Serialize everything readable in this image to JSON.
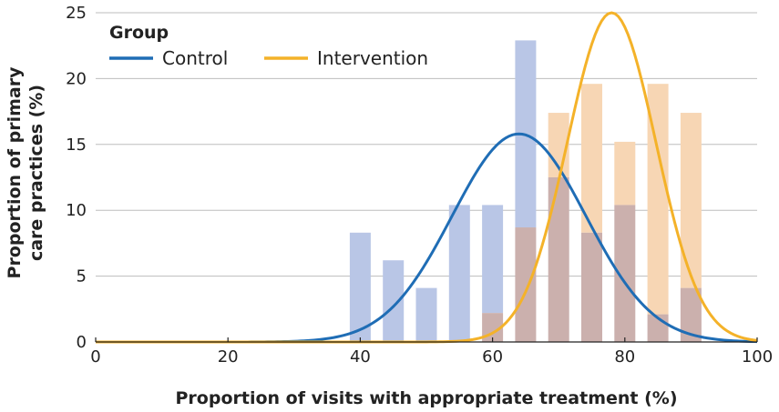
{
  "chart_data": {
    "type": "bar",
    "title": "",
    "xlabel": "Proportion of visits with appropriate treatment (%)",
    "ylabel_lines": [
      "Proportion of primary",
      "care practices (%)"
    ],
    "xlim": [
      0,
      100
    ],
    "ylim": [
      0,
      25
    ],
    "x_ticks": [
      0,
      20,
      40,
      60,
      80,
      100
    ],
    "y_ticks": [
      0,
      5,
      10,
      15,
      20,
      25
    ],
    "grid": "horizontal",
    "legend": {
      "title": "Group",
      "position": "top-left"
    },
    "bar_centers": [
      40,
      45,
      50,
      55,
      60,
      65,
      70,
      75,
      80,
      85,
      90
    ],
    "series": [
      {
        "name": "Control",
        "bar_color": "#b9c6e6",
        "line_color": "#1f6db5",
        "values": [
          8.3,
          6.2,
          4.1,
          10.4,
          10.4,
          22.9,
          12.5,
          8.3,
          10.4,
          2.1,
          4.1
        ],
        "density_mean": 64,
        "density_sd": 10.1,
        "density_peak": 15.8
      },
      {
        "name": "Intervention",
        "bar_color": "#f7d6b4",
        "line_color": "#f4b229",
        "values": [
          0,
          0,
          0,
          0,
          2.2,
          8.7,
          17.4,
          19.6,
          15.2,
          19.6,
          17.4
        ],
        "density_mean": 78,
        "density_sd": 6.7,
        "density_peak": 25
      }
    ],
    "overlap_color": "#cbb0ad",
    "density_curves": true
  }
}
